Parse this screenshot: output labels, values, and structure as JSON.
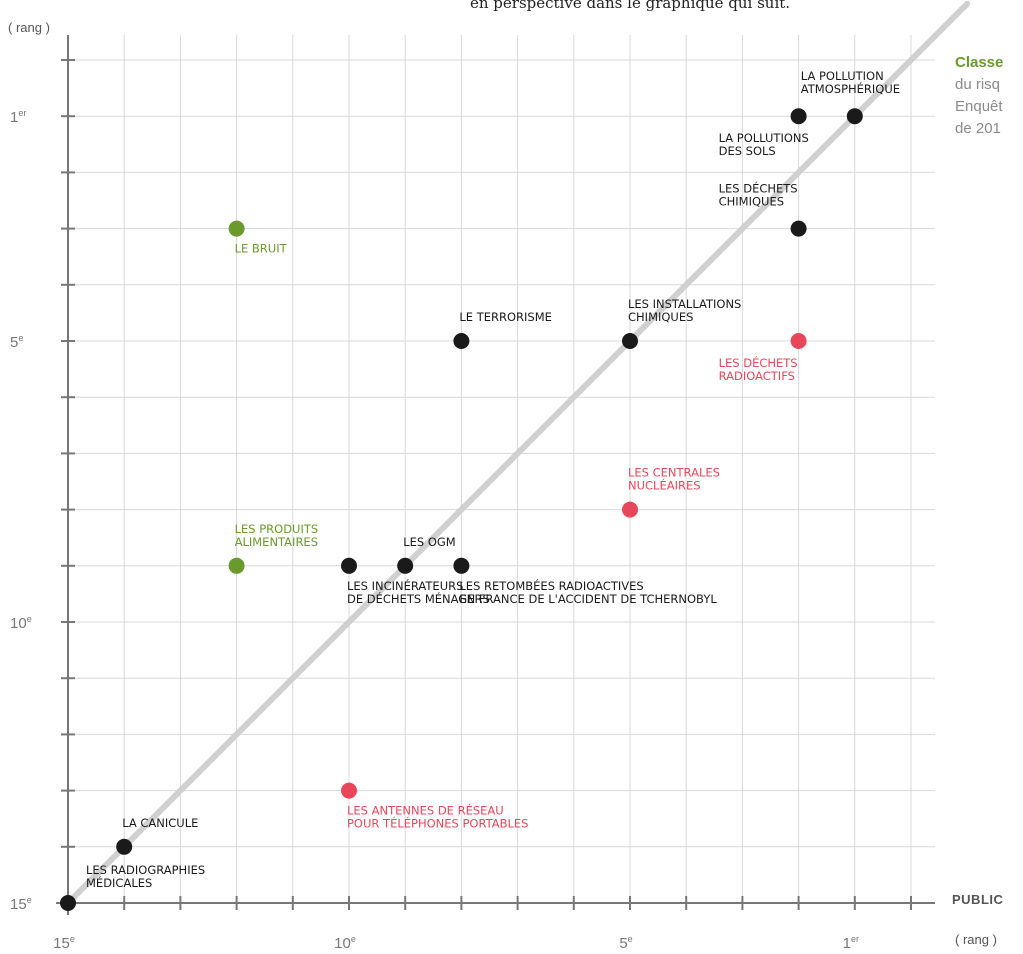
{
  "header": {
    "truncated_text": "en perspective dans le graphique qui suit."
  },
  "side_title": {
    "line1": "Classe",
    "line2": "du risq",
    "line3": "Enquêt",
    "line4": "de 201"
  },
  "axis_units": {
    "y": "( rang )",
    "x": "( rang )"
  },
  "x_side_label": "PUBLIC",
  "colors": {
    "black": "#1a1a1a",
    "green": "#6a9a2e",
    "red": "#e8465a",
    "grid": "#d8d8d8",
    "axis": "#777777",
    "diagonal": "#d0d0d0"
  },
  "chart_data": {
    "type": "scatter",
    "x_range": [
      15,
      0
    ],
    "y_range": [
      15,
      0
    ],
    "x_ticks": [
      {
        "value": 15,
        "label": "15",
        "sup": "e"
      },
      {
        "value": 10,
        "label": "10",
        "sup": "e"
      },
      {
        "value": 5,
        "label": "5",
        "sup": "e"
      },
      {
        "value": 1,
        "label": "1",
        "sup": "er"
      }
    ],
    "y_ticks": [
      {
        "value": 1,
        "label": "1",
        "sup": "er"
      },
      {
        "value": 5,
        "label": "5",
        "sup": "e"
      },
      {
        "value": 10,
        "label": "10",
        "sup": "e"
      },
      {
        "value": 15,
        "label": "15",
        "sup": "e"
      }
    ],
    "diagonal": true,
    "grid": true,
    "points": [
      {
        "x": 1,
        "y": 1,
        "color": "black",
        "label": [
          "LA POLLUTION",
          "ATMOSPHÉRIQUE"
        ],
        "label_anchor": "above-left"
      },
      {
        "x": 2,
        "y": 1,
        "color": "black",
        "label": [
          "LA POLLUTIONS",
          "DES SOLS"
        ],
        "label_anchor": "below-left"
      },
      {
        "x": 2,
        "y": 3,
        "color": "black",
        "label": [
          "LES DÉCHETS",
          "CHIMIQUES"
        ],
        "label_anchor": "above-left"
      },
      {
        "x": 12,
        "y": 3,
        "color": "green",
        "label": [
          "LE BRUIT"
        ],
        "label_anchor": "below"
      },
      {
        "x": 8,
        "y": 5,
        "color": "black",
        "label": [
          "LE TERRORISME"
        ],
        "label_anchor": "above"
      },
      {
        "x": 5,
        "y": 5,
        "color": "black",
        "label": [
          "LES INSTALLATIONS",
          "CHIMIQUES"
        ],
        "label_anchor": "above"
      },
      {
        "x": 2,
        "y": 5,
        "color": "red",
        "label": [
          "LES DÉCHETS",
          "RADIOACTIFS"
        ],
        "label_anchor": "below-left"
      },
      {
        "x": 5,
        "y": 8,
        "color": "red",
        "label": [
          "LES CENTRALES",
          "NUCLÉAIRES"
        ],
        "label_anchor": "above"
      },
      {
        "x": 12,
        "y": 9,
        "color": "green",
        "label": [
          "LES PRODUITS",
          "ALIMENTAIRES"
        ],
        "label_anchor": "above"
      },
      {
        "x": 10,
        "y": 9,
        "color": "black",
        "label": [
          "LES INCINÉRATEURS",
          "DE DÉCHETS MÉNAGERS"
        ],
        "label_anchor": "below"
      },
      {
        "x": 9,
        "y": 9,
        "color": "black",
        "label": [
          "LES OGM"
        ],
        "label_anchor": "above"
      },
      {
        "x": 8,
        "y": 9,
        "color": "black",
        "label": [
          "LES RETOMBÉES RADIOACTIVES",
          "EN FRANCE DE L'ACCIDENT DE TCHERNOBYL"
        ],
        "label_anchor": "below"
      },
      {
        "x": 10,
        "y": 13,
        "color": "red",
        "label": [
          "LES ANTENNES DE RÉSEAU",
          "POUR TÉLÉPHONES PORTABLES"
        ],
        "label_anchor": "below"
      },
      {
        "x": 14,
        "y": 14,
        "color": "black",
        "label": [
          "LA CANICULE"
        ],
        "label_anchor": "above"
      },
      {
        "x": 15,
        "y": 15,
        "color": "black",
        "label": [
          "LES RADIOGRAPHIES",
          "MÉDICALES"
        ],
        "label_anchor": "above-right"
      }
    ]
  }
}
